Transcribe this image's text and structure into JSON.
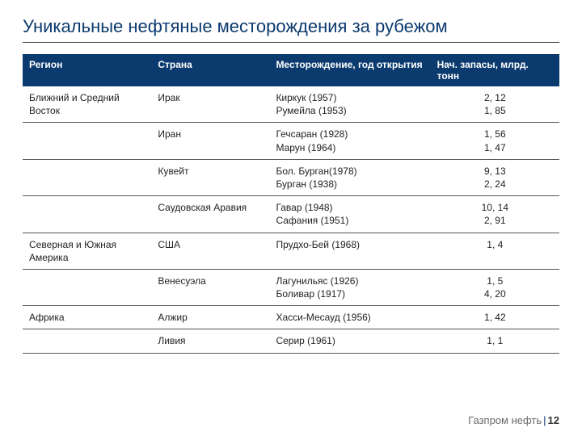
{
  "title": "Уникальные нефтяные месторождения за рубежом",
  "headers": {
    "region": "Регион",
    "country": "Страна",
    "field": "Месторождение, год открытия",
    "reserves": "Нач. запасы, млрд. тонн"
  },
  "rows": [
    {
      "region": "Ближний и Средний Восток",
      "country": "Ирак",
      "field": "Киркук (1957)\nРумейла (1953)",
      "reserves": "2, 12\n1, 85"
    },
    {
      "region": "",
      "country": "Иран",
      "field": "Гечсаран (1928)\nМарун (1964)",
      "reserves": "1, 56\n1, 47"
    },
    {
      "region": "",
      "country": "Кувейт",
      "field": "Бол. Бурган(1978)\nБурган (1938)",
      "reserves": "9, 13\n2, 24"
    },
    {
      "region": "",
      "country": "Саудовская Аравия",
      "field": "Гавар (1948)\nСафания (1951)",
      "reserves": "10, 14\n2, 91"
    },
    {
      "region": "Северная и Южная Америка",
      "country": "США",
      "field": "Прудхо-Бей (1968)",
      "reserves": "1, 4"
    },
    {
      "region": "",
      "country": "Венесуэла",
      "field": "Лагунильяс (1926)\nБоливар (1917)",
      "reserves": "1, 5\n4, 20"
    },
    {
      "region": "Африка",
      "country": "Алжир",
      "field": "Хасси-Месауд (1956)",
      "reserves": "1, 42"
    },
    {
      "region": "",
      "country": "Ливия",
      "field": "Серир (1961)",
      "reserves": "1, 1"
    }
  ],
  "footer": {
    "brand": "Газпром нефть",
    "page": "12"
  },
  "colors": {
    "header_bg": "#0b3a6e",
    "header_fg": "#ffffff",
    "title_color": "#0b3a6e",
    "rule_color": "#555555",
    "footer_color": "#6a6a6a"
  }
}
